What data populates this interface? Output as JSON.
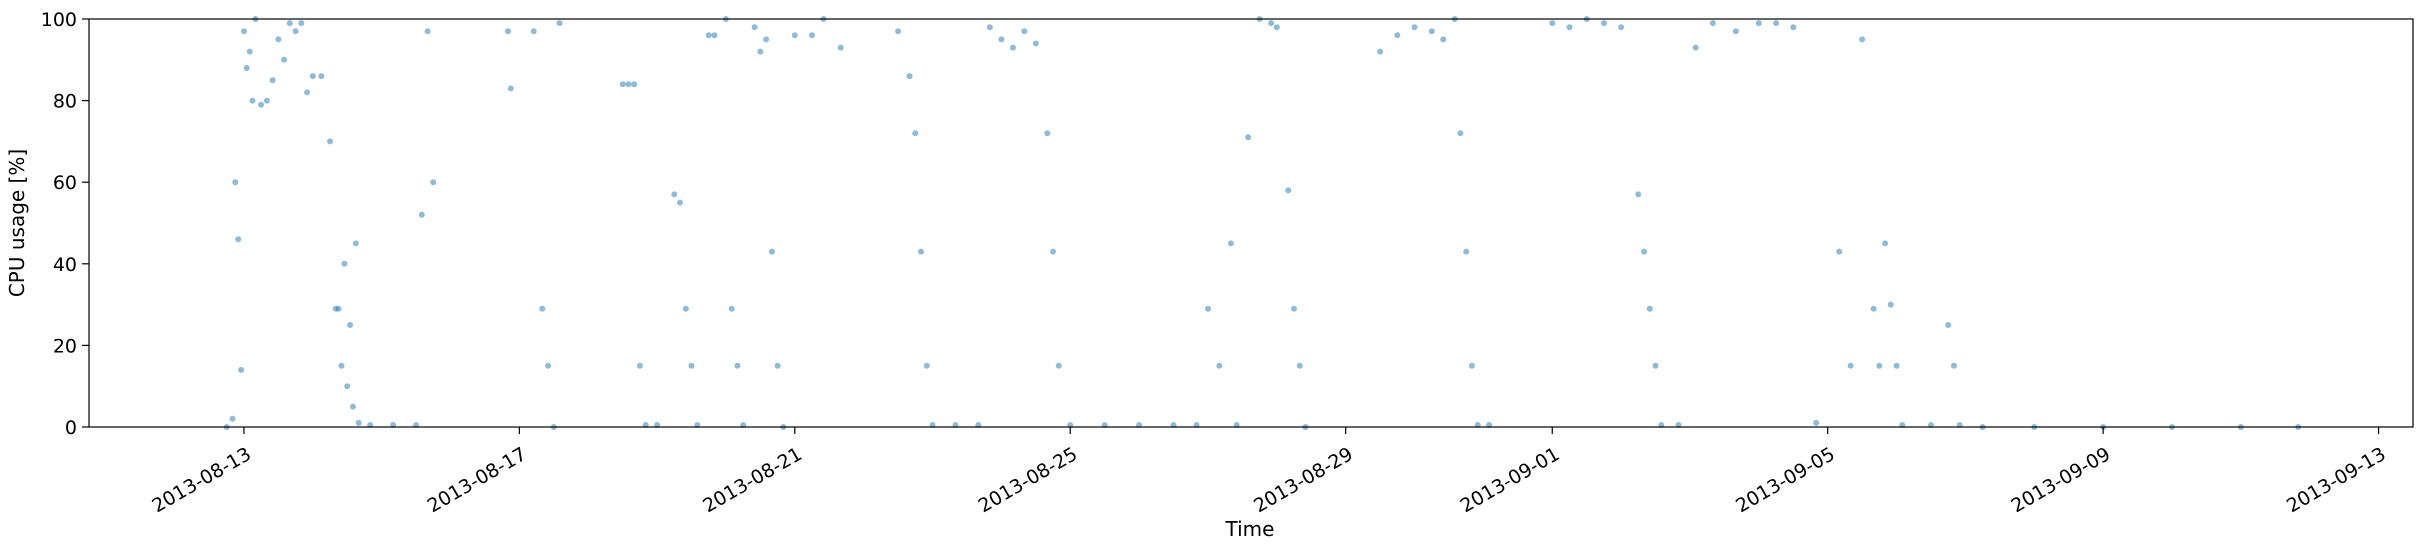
{
  "chart_data": {
    "type": "scatter",
    "title": "",
    "xlabel": "Time",
    "ylabel": "CPU usage [%]",
    "x_type": "date",
    "xlim": [
      "2013-08-10T18:00",
      "2013-09-13T12:00"
    ],
    "ylim": [
      0,
      100
    ],
    "xticks": [
      "2013-08-13",
      "2013-08-17",
      "2013-08-21",
      "2013-08-25",
      "2013-08-29",
      "2013-09-01",
      "2013-09-05",
      "2013-09-09",
      "2013-09-13"
    ],
    "yticks": [
      0,
      20,
      40,
      60,
      80,
      100
    ],
    "grid": false,
    "marker_color": "#1f77b4",
    "marker_alpha": 0.5,
    "series": [
      {
        "values_note": "Estimated sample of scatter points [time, CPU %]",
        "points": [
          [
            "2013-08-12T18:00",
            0
          ],
          [
            "2013-08-12T20:00",
            2
          ],
          [
            "2013-08-12T21:00",
            60
          ],
          [
            "2013-08-12T22:00",
            46
          ],
          [
            "2013-08-12T23:00",
            14
          ],
          [
            "2013-08-13T00:00",
            97
          ],
          [
            "2013-08-13T01:00",
            88
          ],
          [
            "2013-08-13T02:00",
            92
          ],
          [
            "2013-08-13T03:00",
            80
          ],
          [
            "2013-08-13T04:00",
            100
          ],
          [
            "2013-08-13T06:00",
            79
          ],
          [
            "2013-08-13T08:00",
            80
          ],
          [
            "2013-08-13T10:00",
            85
          ],
          [
            "2013-08-13T12:00",
            95
          ],
          [
            "2013-08-13T14:00",
            90
          ],
          [
            "2013-08-13T16:00",
            99
          ],
          [
            "2013-08-13T18:00",
            97
          ],
          [
            "2013-08-13T20:00",
            99
          ],
          [
            "2013-08-13T22:00",
            82
          ],
          [
            "2013-08-14T00:00",
            86
          ],
          [
            "2013-08-14T03:00",
            86
          ],
          [
            "2013-08-14T06:00",
            70
          ],
          [
            "2013-08-14T08:00",
            29
          ],
          [
            "2013-08-14T09:00",
            29
          ],
          [
            "2013-08-14T10:00",
            15
          ],
          [
            "2013-08-14T11:00",
            40
          ],
          [
            "2013-08-14T12:00",
            10
          ],
          [
            "2013-08-14T13:00",
            25
          ],
          [
            "2013-08-14T14:00",
            5
          ],
          [
            "2013-08-14T15:00",
            45
          ],
          [
            "2013-08-14T16:00",
            1
          ],
          [
            "2013-08-14T20:00",
            0.5
          ],
          [
            "2013-08-15T04:00",
            0.5
          ],
          [
            "2013-08-15T12:00",
            0.5
          ],
          [
            "2013-08-15T14:00",
            52
          ],
          [
            "2013-08-15T16:00",
            97
          ],
          [
            "2013-08-15T18:00",
            60
          ],
          [
            "2013-08-16T20:00",
            97
          ],
          [
            "2013-08-16T21:00",
            83
          ],
          [
            "2013-08-17T05:00",
            97
          ],
          [
            "2013-08-17T08:00",
            29
          ],
          [
            "2013-08-17T10:00",
            15
          ],
          [
            "2013-08-17T12:00",
            0
          ],
          [
            "2013-08-17T14:00",
            99
          ],
          [
            "2013-08-18T12:00",
            84
          ],
          [
            "2013-08-18T14:00",
            84
          ],
          [
            "2013-08-18T16:00",
            84
          ],
          [
            "2013-08-18T18:00",
            15
          ],
          [
            "2013-08-18T20:00",
            0.5
          ],
          [
            "2013-08-19T00:00",
            0.5
          ],
          [
            "2013-08-19T06:00",
            57
          ],
          [
            "2013-08-19T08:00",
            55
          ],
          [
            "2013-08-19T10:00",
            29
          ],
          [
            "2013-08-19T12:00",
            15
          ],
          [
            "2013-08-19T14:00",
            0.5
          ],
          [
            "2013-08-19T18:00",
            96
          ],
          [
            "2013-08-19T20:00",
            96
          ],
          [
            "2013-08-20T00:00",
            100
          ],
          [
            "2013-08-20T02:00",
            29
          ],
          [
            "2013-08-20T04:00",
            15
          ],
          [
            "2013-08-20T06:00",
            0.5
          ],
          [
            "2013-08-20T10:00",
            98
          ],
          [
            "2013-08-20T12:00",
            92
          ],
          [
            "2013-08-20T14:00",
            95
          ],
          [
            "2013-08-20T16:00",
            43
          ],
          [
            "2013-08-20T18:00",
            15
          ],
          [
            "2013-08-20T20:00",
            0
          ],
          [
            "2013-08-21T00:00",
            96
          ],
          [
            "2013-08-21T06:00",
            96
          ],
          [
            "2013-08-21T10:00",
            100
          ],
          [
            "2013-08-21T16:00",
            93
          ],
          [
            "2013-08-22T12:00",
            97
          ],
          [
            "2013-08-22T16:00",
            86
          ],
          [
            "2013-08-22T18:00",
            72
          ],
          [
            "2013-08-22T20:00",
            43
          ],
          [
            "2013-08-22T22:00",
            15
          ],
          [
            "2013-08-23T00:00",
            0.5
          ],
          [
            "2013-08-23T08:00",
            0.5
          ],
          [
            "2013-08-23T16:00",
            0.5
          ],
          [
            "2013-08-23T20:00",
            98
          ],
          [
            "2013-08-24T00:00",
            95
          ],
          [
            "2013-08-24T04:00",
            93
          ],
          [
            "2013-08-24T08:00",
            97
          ],
          [
            "2013-08-24T12:00",
            94
          ],
          [
            "2013-08-24T16:00",
            72
          ],
          [
            "2013-08-24T18:00",
            43
          ],
          [
            "2013-08-24T20:00",
            15
          ],
          [
            "2013-08-25T00:00",
            0.5
          ],
          [
            "2013-08-25T12:00",
            0.5
          ],
          [
            "2013-08-26T00:00",
            0.5
          ],
          [
            "2013-08-26T12:00",
            0.5
          ],
          [
            "2013-08-26T20:00",
            0.5
          ],
          [
            "2013-08-27T00:00",
            29
          ],
          [
            "2013-08-27T04:00",
            15
          ],
          [
            "2013-08-27T08:00",
            45
          ],
          [
            "2013-08-27T10:00",
            0.5
          ],
          [
            "2013-08-27T14:00",
            71
          ],
          [
            "2013-08-27T18:00",
            100
          ],
          [
            "2013-08-27T22:00",
            99
          ],
          [
            "2013-08-28T00:00",
            98
          ],
          [
            "2013-08-28T04:00",
            58
          ],
          [
            "2013-08-28T06:00",
            29
          ],
          [
            "2013-08-28T08:00",
            15
          ],
          [
            "2013-08-28T10:00",
            0
          ],
          [
            "2013-08-29T12:00",
            92
          ],
          [
            "2013-08-29T18:00",
            96
          ],
          [
            "2013-08-30T00:00",
            98
          ],
          [
            "2013-08-30T06:00",
            97
          ],
          [
            "2013-08-30T10:00",
            95
          ],
          [
            "2013-08-30T14:00",
            100
          ],
          [
            "2013-08-30T16:00",
            72
          ],
          [
            "2013-08-30T18:00",
            43
          ],
          [
            "2013-08-30T20:00",
            15
          ],
          [
            "2013-08-30T22:00",
            0.5
          ],
          [
            "2013-08-31T02:00",
            0.5
          ],
          [
            "2013-09-01T00:00",
            99
          ],
          [
            "2013-09-01T06:00",
            98
          ],
          [
            "2013-09-01T12:00",
            100
          ],
          [
            "2013-09-01T18:00",
            99
          ],
          [
            "2013-09-02T00:00",
            98
          ],
          [
            "2013-09-02T06:00",
            57
          ],
          [
            "2013-09-02T08:00",
            43
          ],
          [
            "2013-09-02T10:00",
            29
          ],
          [
            "2013-09-02T12:00",
            15
          ],
          [
            "2013-09-02T14:00",
            0.5
          ],
          [
            "2013-09-02T20:00",
            0.5
          ],
          [
            "2013-09-03T02:00",
            93
          ],
          [
            "2013-09-03T08:00",
            99
          ],
          [
            "2013-09-03T16:00",
            97
          ],
          [
            "2013-09-04T00:00",
            99
          ],
          [
            "2013-09-04T06:00",
            99
          ],
          [
            "2013-09-04T12:00",
            98
          ],
          [
            "2013-09-04T20:00",
            1
          ],
          [
            "2013-09-05T04:00",
            43
          ],
          [
            "2013-09-05T08:00",
            15
          ],
          [
            "2013-09-05T12:00",
            95
          ],
          [
            "2013-09-05T16:00",
            29
          ],
          [
            "2013-09-05T18:00",
            15
          ],
          [
            "2013-09-05T20:00",
            45
          ],
          [
            "2013-09-05T22:00",
            30
          ],
          [
            "2013-09-06T00:00",
            15
          ],
          [
            "2013-09-06T02:00",
            0.5
          ],
          [
            "2013-09-06T12:00",
            0.5
          ],
          [
            "2013-09-06T18:00",
            25
          ],
          [
            "2013-09-06T20:00",
            15
          ],
          [
            "2013-09-06T22:00",
            0.5
          ],
          [
            "2013-09-07T06:00",
            0
          ],
          [
            "2013-09-08T00:00",
            0
          ],
          [
            "2013-09-09T00:00",
            0
          ],
          [
            "2013-09-10T00:00",
            0
          ],
          [
            "2013-09-11T00:00",
            0
          ],
          [
            "2013-09-11T20:00",
            0
          ]
        ]
      }
    ]
  }
}
